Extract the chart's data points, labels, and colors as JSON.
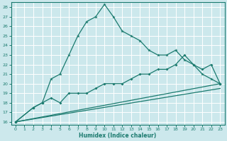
{
  "xlabel": "Humidex (Indice chaleur)",
  "bg_color": "#cce8ec",
  "line_color": "#1a7a6e",
  "grid_color": "#ffffff",
  "xlim": [
    -0.5,
    23.5
  ],
  "ylim": [
    15.7,
    28.5
  ],
  "yticks": [
    16,
    17,
    18,
    19,
    20,
    21,
    22,
    23,
    24,
    25,
    26,
    27,
    28
  ],
  "xticks": [
    0,
    1,
    2,
    3,
    4,
    5,
    6,
    7,
    8,
    9,
    10,
    11,
    12,
    13,
    14,
    15,
    16,
    17,
    18,
    19,
    20,
    21,
    22,
    23
  ],
  "line1_x": [
    0,
    2,
    3,
    4,
    5,
    6,
    7,
    8,
    9,
    10,
    11,
    12,
    13,
    14,
    15,
    16,
    17,
    18,
    19,
    20,
    21,
    22,
    23
  ],
  "line1_y": [
    16,
    17.5,
    18,
    20.5,
    21,
    23,
    25,
    26.5,
    27,
    28.3,
    27,
    25.5,
    25,
    24.5,
    23.5,
    23,
    23,
    23.5,
    22.5,
    22,
    21,
    20.5,
    20
  ],
  "line2_x": [
    0,
    2,
    3,
    4,
    5,
    6,
    7,
    8,
    9,
    10,
    11,
    12,
    13,
    14,
    15,
    16,
    17,
    18,
    19,
    20,
    21,
    22,
    23
  ],
  "line2_y": [
    16,
    17.5,
    18,
    18.5,
    18,
    19,
    19,
    19,
    19.5,
    20,
    20,
    20,
    20.5,
    21,
    21,
    21.5,
    21.5,
    22,
    23,
    22,
    21.5,
    22,
    20
  ],
  "line3_x": [
    0,
    23
  ],
  "line3_y": [
    16,
    20
  ],
  "line4_x": [
    0,
    23
  ],
  "line4_y": [
    16,
    19.5
  ]
}
